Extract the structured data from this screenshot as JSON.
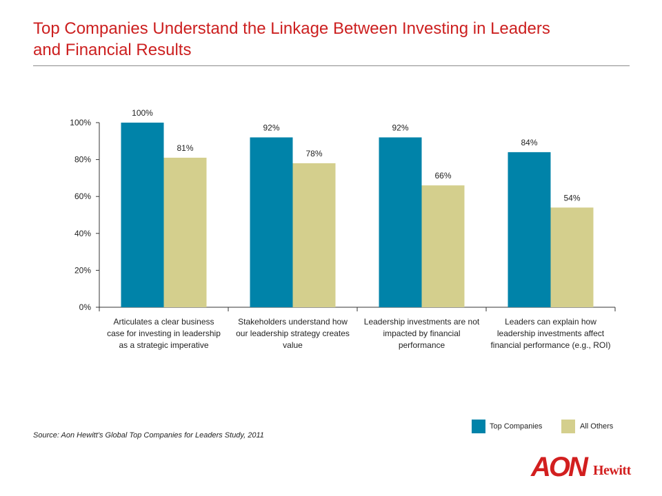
{
  "page": {
    "title_line1": "Top Companies Understand the Linkage Between Investing in Leaders",
    "title_line2": "and Financial Results",
    "source": "Source: Aon Hewitt’s Global Top Companies for Leaders Study, 2011",
    "logo_text_main": "AON",
    "logo_text_sub": "Hewitt"
  },
  "colors": {
    "title": "#cc1f1f",
    "top_companies": "#0083a9",
    "all_others": "#d4cf8d",
    "logo": "#d21f1f"
  },
  "chart_data": {
    "type": "bar",
    "title": "",
    "xlabel": "",
    "ylabel": "",
    "ylim": [
      0,
      100
    ],
    "yticks": [
      "0%",
      "20%",
      "40%",
      "60%",
      "80%",
      "100%"
    ],
    "categories": [
      [
        "Articulates a clear business",
        "case for investing in leadership",
        "as a strategic imperative"
      ],
      [
        "Stakeholders understand how",
        "our leadership strategy creates",
        "value"
      ],
      [
        "Leadership investments are not",
        "impacted by financial",
        "performance"
      ],
      [
        "Leaders can explain how",
        "leadership investments affect",
        "financial performance (e.g., ROI)"
      ]
    ],
    "series": [
      {
        "name": "Top Companies",
        "values": [
          100,
          92,
          92,
          84
        ],
        "labels": [
          "100%",
          "92%",
          "92%",
          "84%"
        ]
      },
      {
        "name": "All Others",
        "values": [
          81,
          78,
          66,
          54
        ],
        "labels": [
          "81%",
          "78%",
          "66%",
          "54%"
        ]
      }
    ],
    "legend": "bottom-right",
    "grid": false
  }
}
